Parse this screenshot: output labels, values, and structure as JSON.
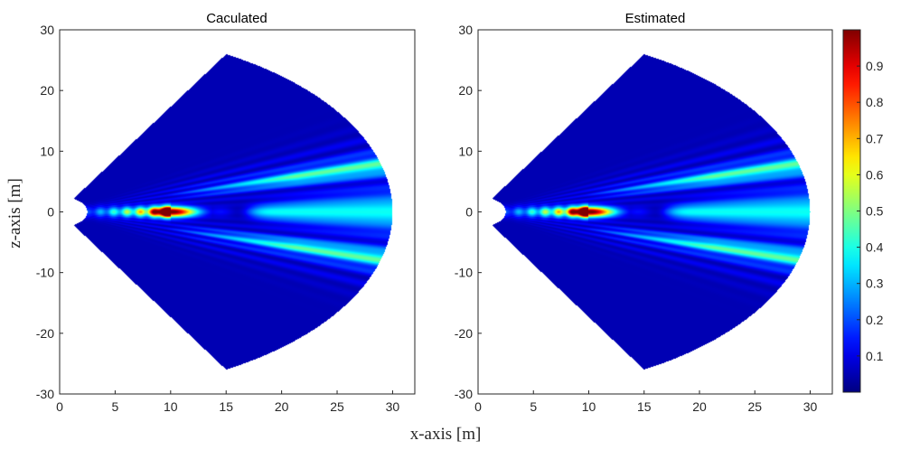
{
  "figure": {
    "xlabel": "x-axis [m]",
    "ylabel": "z-axis [m]"
  },
  "chart_data": [
    {
      "type": "heatmap",
      "title": "Caculated",
      "xlim": [
        0,
        32
      ],
      "ylim": [
        -30,
        30
      ],
      "x_ticks": [
        "0",
        "5",
        "10",
        "15",
        "20",
        "25",
        "30"
      ],
      "y_ticks": [
        "-30",
        "-20",
        "-10",
        "0",
        "10",
        "20",
        "30"
      ],
      "field": {
        "shape": "annular sector",
        "apex": [
          0,
          0
        ],
        "inner_radius": 2.5,
        "outer_radius": 30,
        "half_angle_deg": 60,
        "focus_point": [
          10,
          0
        ],
        "peak_value": 1.0,
        "background_value": 0.05
      }
    },
    {
      "type": "heatmap",
      "title": "Estimated",
      "xlim": [
        0,
        32
      ],
      "ylim": [
        -30,
        30
      ],
      "x_ticks": [
        "0",
        "5",
        "10",
        "15",
        "20",
        "25",
        "30"
      ],
      "y_ticks": [
        "-30",
        "-20",
        "-10",
        "0",
        "10",
        "20",
        "30"
      ],
      "field": {
        "shape": "annular sector",
        "apex": [
          0,
          0
        ],
        "inner_radius": 2.5,
        "outer_radius": 30,
        "half_angle_deg": 60,
        "focus_point": [
          10,
          0
        ],
        "peak_value": 1.0,
        "background_value": 0.05
      }
    }
  ],
  "colorbar": {
    "colormap": "jet",
    "range": [
      0,
      1
    ],
    "ticks": [
      "0.1",
      "0.2",
      "0.3",
      "0.4",
      "0.5",
      "0.6",
      "0.7",
      "0.8",
      "0.9"
    ],
    "tick_values": [
      0.1,
      0.2,
      0.3,
      0.4,
      0.5,
      0.6,
      0.7,
      0.8,
      0.9
    ]
  }
}
